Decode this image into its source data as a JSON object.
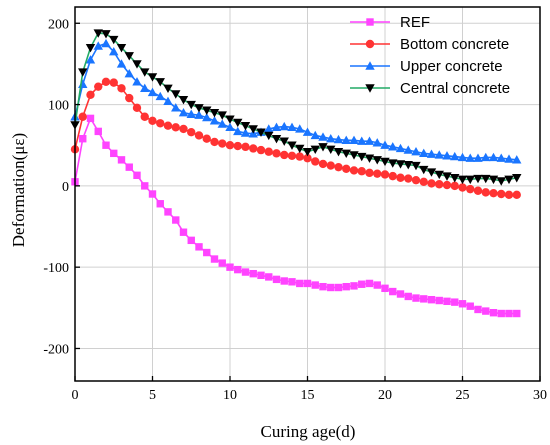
{
  "chart_data": {
    "type": "line",
    "xlabel": "Curing age(d)",
    "ylabel": "Deformation(με)",
    "xlim": [
      0,
      30
    ],
    "ylim": [
      -240,
      220
    ],
    "xticks": [
      0,
      5,
      10,
      15,
      20,
      25,
      30
    ],
    "yticks": [
      -200,
      -100,
      0,
      100,
      200
    ],
    "grid": true,
    "legend_position": "top-right",
    "series": [
      {
        "name": "REF",
        "color": "#ff44ff",
        "marker": "square",
        "points": [
          [
            0,
            5
          ],
          [
            0.5,
            58
          ],
          [
            1,
            83
          ],
          [
            1.5,
            67
          ],
          [
            2,
            50
          ],
          [
            2.5,
            40
          ],
          [
            3,
            32
          ],
          [
            3.5,
            23
          ],
          [
            4,
            13
          ],
          [
            4.5,
            0
          ],
          [
            5,
            -10
          ],
          [
            5.5,
            -22
          ],
          [
            6,
            -32
          ],
          [
            6.5,
            -42
          ],
          [
            7,
            -57
          ],
          [
            7.5,
            -67
          ],
          [
            8,
            -75
          ],
          [
            8.5,
            -82
          ],
          [
            9,
            -90
          ],
          [
            9.5,
            -95
          ],
          [
            10,
            -100
          ],
          [
            10.5,
            -103
          ],
          [
            11,
            -106
          ],
          [
            11.5,
            -108
          ],
          [
            12,
            -110
          ],
          [
            12.5,
            -112
          ],
          [
            13,
            -115
          ],
          [
            13.5,
            -117
          ],
          [
            14,
            -118
          ],
          [
            14.5,
            -120
          ],
          [
            15,
            -120
          ],
          [
            15.5,
            -122
          ],
          [
            16,
            -124
          ],
          [
            16.5,
            -125
          ],
          [
            17,
            -125
          ],
          [
            17.5,
            -124
          ],
          [
            18,
            -123
          ],
          [
            18.5,
            -121
          ],
          [
            19,
            -120
          ],
          [
            19.5,
            -122
          ],
          [
            20,
            -126
          ],
          [
            20.5,
            -130
          ],
          [
            21,
            -133
          ],
          [
            21.5,
            -136
          ],
          [
            22,
            -138
          ],
          [
            22.5,
            -139
          ],
          [
            23,
            -140
          ],
          [
            23.5,
            -141
          ],
          [
            24,
            -142
          ],
          [
            24.5,
            -143
          ],
          [
            25,
            -145
          ],
          [
            25.5,
            -148
          ],
          [
            26,
            -152
          ],
          [
            26.5,
            -154
          ],
          [
            27,
            -156
          ],
          [
            27.5,
            -157
          ],
          [
            28,
            -157
          ],
          [
            28.5,
            -157
          ]
        ]
      },
      {
        "name": "Bottom concrete",
        "color": "#ff3333",
        "marker": "circle",
        "points": [
          [
            0,
            45
          ],
          [
            0.5,
            85
          ],
          [
            1,
            112
          ],
          [
            1.5,
            122
          ],
          [
            2,
            128
          ],
          [
            2.5,
            127
          ],
          [
            3,
            120
          ],
          [
            3.5,
            108
          ],
          [
            4,
            96
          ],
          [
            4.5,
            85
          ],
          [
            5,
            80
          ],
          [
            5.5,
            77
          ],
          [
            6,
            74
          ],
          [
            6.5,
            72
          ],
          [
            7,
            70
          ],
          [
            7.5,
            66
          ],
          [
            8,
            62
          ],
          [
            8.5,
            58
          ],
          [
            9,
            54
          ],
          [
            9.5,
            52
          ],
          [
            10,
            50
          ],
          [
            10.5,
            49
          ],
          [
            11,
            48
          ],
          [
            11.5,
            46
          ],
          [
            12,
            44
          ],
          [
            12.5,
            42
          ],
          [
            13,
            40
          ],
          [
            13.5,
            38
          ],
          [
            14,
            37
          ],
          [
            14.5,
            36
          ],
          [
            15,
            34
          ],
          [
            15.5,
            30
          ],
          [
            16,
            27
          ],
          [
            16.5,
            25
          ],
          [
            17,
            23
          ],
          [
            17.5,
            21
          ],
          [
            18,
            19
          ],
          [
            18.5,
            18
          ],
          [
            19,
            16
          ],
          [
            19.5,
            15
          ],
          [
            20,
            14
          ],
          [
            20.5,
            12
          ],
          [
            21,
            10
          ],
          [
            21.5,
            9
          ],
          [
            22,
            7
          ],
          [
            22.5,
            5
          ],
          [
            23,
            3
          ],
          [
            23.5,
            2
          ],
          [
            24,
            1
          ],
          [
            24.5,
            0
          ],
          [
            25,
            -2
          ],
          [
            25.5,
            -4
          ],
          [
            26,
            -6
          ],
          [
            26.5,
            -8
          ],
          [
            27,
            -9
          ],
          [
            27.5,
            -10
          ],
          [
            28,
            -11
          ],
          [
            28.5,
            -11
          ]
        ]
      },
      {
        "name": "Upper concrete",
        "color": "#1a75ff",
        "marker": "triangle",
        "points": [
          [
            0,
            85
          ],
          [
            0.5,
            125
          ],
          [
            1,
            155
          ],
          [
            1.5,
            172
          ],
          [
            2,
            175
          ],
          [
            2.5,
            165
          ],
          [
            3,
            150
          ],
          [
            3.5,
            138
          ],
          [
            4,
            128
          ],
          [
            4.5,
            120
          ],
          [
            5,
            115
          ],
          [
            5.5,
            110
          ],
          [
            6,
            104
          ],
          [
            6.5,
            96
          ],
          [
            7,
            90
          ],
          [
            7.5,
            88
          ],
          [
            8,
            87
          ],
          [
            8.5,
            84
          ],
          [
            9,
            80
          ],
          [
            9.5,
            76
          ],
          [
            10,
            72
          ],
          [
            10.5,
            67
          ],
          [
            11,
            65
          ],
          [
            11.5,
            64
          ],
          [
            12,
            66
          ],
          [
            12.5,
            70
          ],
          [
            13,
            72
          ],
          [
            13.5,
            73
          ],
          [
            14,
            72
          ],
          [
            14.5,
            70
          ],
          [
            15,
            66
          ],
          [
            15.5,
            62
          ],
          [
            16,
            60
          ],
          [
            16.5,
            58
          ],
          [
            17,
            57
          ],
          [
            17.5,
            56
          ],
          [
            18,
            56
          ],
          [
            18.5,
            55
          ],
          [
            19,
            55
          ],
          [
            19.5,
            53
          ],
          [
            20,
            50
          ],
          [
            20.5,
            48
          ],
          [
            21,
            46
          ],
          [
            21.5,
            44
          ],
          [
            22,
            42
          ],
          [
            22.5,
            40
          ],
          [
            23,
            39
          ],
          [
            23.5,
            38
          ],
          [
            24,
            37
          ],
          [
            24.5,
            36
          ],
          [
            25,
            35
          ],
          [
            25.5,
            34
          ],
          [
            26,
            34
          ],
          [
            26.5,
            35
          ],
          [
            27,
            35
          ],
          [
            27.5,
            34
          ],
          [
            28,
            33
          ],
          [
            28.5,
            32
          ]
        ]
      },
      {
        "name": "Central concrete",
        "color": "#000000",
        "line_color": "#22aa66",
        "marker": "triangle-down",
        "points": [
          [
            0,
            75
          ],
          [
            0.5,
            140
          ],
          [
            1,
            170
          ],
          [
            1.5,
            188
          ],
          [
            2,
            187
          ],
          [
            2.5,
            180
          ],
          [
            3,
            170
          ],
          [
            3.5,
            160
          ],
          [
            4,
            150
          ],
          [
            4.5,
            140
          ],
          [
            5,
            134
          ],
          [
            5.5,
            128
          ],
          [
            6,
            120
          ],
          [
            6.5,
            113
          ],
          [
            7,
            106
          ],
          [
            7.5,
            100
          ],
          [
            8,
            96
          ],
          [
            8.5,
            93
          ],
          [
            9,
            90
          ],
          [
            9.5,
            87
          ],
          [
            10,
            82
          ],
          [
            10.5,
            78
          ],
          [
            11,
            74
          ],
          [
            11.5,
            70
          ],
          [
            12,
            66
          ],
          [
            12.5,
            62
          ],
          [
            13,
            58
          ],
          [
            13.5,
            55
          ],
          [
            14,
            50
          ],
          [
            14.5,
            46
          ],
          [
            15,
            42
          ],
          [
            15.5,
            45
          ],
          [
            16,
            48
          ],
          [
            16.5,
            45
          ],
          [
            17,
            42
          ],
          [
            17.5,
            40
          ],
          [
            18,
            38
          ],
          [
            18.5,
            36
          ],
          [
            19,
            34
          ],
          [
            19.5,
            32
          ],
          [
            20,
            30
          ],
          [
            20.5,
            28
          ],
          [
            21,
            27
          ],
          [
            21.5,
            26
          ],
          [
            22,
            25
          ],
          [
            22.5,
            20
          ],
          [
            23,
            17
          ],
          [
            23.5,
            14
          ],
          [
            24,
            12
          ],
          [
            24.5,
            10
          ],
          [
            25,
            8
          ],
          [
            25.5,
            8
          ],
          [
            26,
            9
          ],
          [
            26.5,
            9
          ],
          [
            27,
            8
          ],
          [
            27.5,
            6
          ],
          [
            28,
            8
          ],
          [
            28.5,
            10
          ]
        ]
      }
    ]
  }
}
